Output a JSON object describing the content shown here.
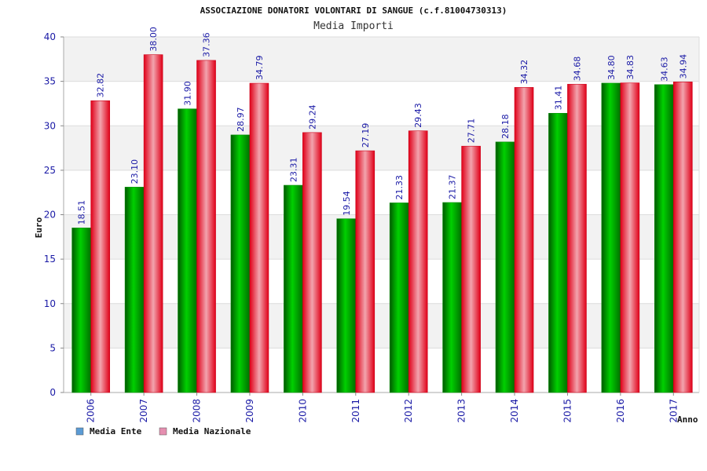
{
  "chart_data": {
    "type": "bar",
    "title": "ASSOCIAZIONE DONATORI VOLONTARI DI SANGUE (c.f.81004730313)",
    "subtitle": "Media Importi",
    "xlabel": "Anno",
    "ylabel": "Euro",
    "ylim": [
      0,
      40
    ],
    "yticks": [
      "0",
      "5",
      "10",
      "15",
      "20",
      "25",
      "30",
      "35",
      "40"
    ],
    "categories": [
      "2006",
      "2007",
      "2008",
      "2009",
      "2010",
      "2011",
      "2012",
      "2013",
      "2014",
      "2015",
      "2016",
      "2017"
    ],
    "series": [
      {
        "name": "Media Ente",
        "values": [
          18.51,
          23.1,
          31.9,
          28.97,
          23.31,
          19.54,
          21.33,
          21.37,
          28.18,
          31.41,
          34.8,
          34.63
        ],
        "labels": [
          "18.51",
          "23.10",
          "31.90",
          "28.97",
          "23.31",
          "19.54",
          "21.33",
          "21.37",
          "28.18",
          "31.41",
          "34.80",
          "34.63"
        ],
        "color": "#00a000",
        "legend_color": "#5b9bd5"
      },
      {
        "name": "Media Nazionale",
        "values": [
          32.82,
          38.0,
          37.36,
          34.79,
          29.24,
          27.19,
          29.43,
          27.71,
          34.32,
          34.68,
          34.83,
          34.94
        ],
        "labels": [
          "32.82",
          "38.00",
          "37.36",
          "34.79",
          "29.24",
          "27.19",
          "29.43",
          "27.71",
          "34.32",
          "34.68",
          "34.83",
          "34.94"
        ],
        "color": "#e8102a",
        "legend_color": "#e58fb0"
      }
    ],
    "grid": true,
    "legend_position": "bottom-left"
  }
}
